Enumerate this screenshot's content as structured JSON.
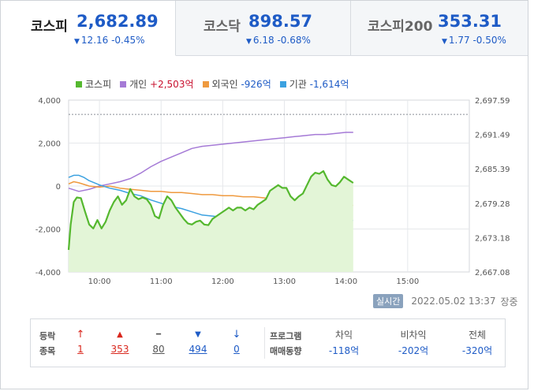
{
  "tabs": [
    {
      "name": "코스피",
      "price": "2,682.89",
      "change": "12.16 -0.45%",
      "active": true
    },
    {
      "name": "코스닥",
      "price": "898.57",
      "change": "6.18 -0.68%",
      "active": false
    },
    {
      "name": "코스피200",
      "price": "353.31",
      "change": "1.77 -0.50%",
      "active": false
    }
  ],
  "legend": [
    {
      "label": "코스피",
      "value": "",
      "color": "#55b82f"
    },
    {
      "label": "개인",
      "value": "+2,503억",
      "color": "#a57ad6"
    },
    {
      "label": "외국인",
      "value": "-926억",
      "color": "#ef9a3f"
    },
    {
      "label": "기관",
      "value": "-1,614억",
      "color": "#3ba1e0"
    }
  ],
  "chart_data": {
    "type": "line",
    "x_ticks": [
      "10:00",
      "11:00",
      "12:00",
      "13:00",
      "14:00",
      "15:00"
    ],
    "y_left_ticks": [
      "4,000",
      "2,000",
      "0",
      "-2,000",
      "-4,000"
    ],
    "y_left_range": [
      -4000,
      4000
    ],
    "y_right_ticks": [
      "2,697.59",
      "2,691.49",
      "2,685.39",
      "2,679.28",
      "2,673.18",
      "2,667.08"
    ],
    "y_right_range": [
      2667.08,
      2697.59
    ],
    "reference_line_right": 2695.05,
    "x_range_minutes": [
      0,
      390
    ],
    "series": [
      {
        "name": "개인",
        "axis": "left",
        "color": "#a57ad6",
        "x": [
          0,
          10,
          20,
          30,
          40,
          50,
          60,
          70,
          80,
          90,
          100,
          110,
          120,
          130,
          140,
          150,
          160,
          170,
          180,
          190,
          200,
          210,
          220,
          230,
          240,
          250,
          260,
          270,
          277
        ],
        "y": [
          -100,
          -250,
          -150,
          0,
          100,
          200,
          350,
          600,
          900,
          1150,
          1350,
          1550,
          1750,
          1850,
          1900,
          1950,
          2000,
          2050,
          2100,
          2150,
          2200,
          2250,
          2300,
          2350,
          2400,
          2400,
          2450,
          2500,
          2500
        ]
      },
      {
        "name": "외국인",
        "axis": "left",
        "color": "#ef9a3f",
        "x": [
          0,
          5,
          10,
          20,
          30,
          40,
          50,
          60,
          70,
          80,
          90,
          100,
          110,
          120,
          130,
          140,
          150,
          160,
          170,
          180,
          190,
          200,
          210,
          220,
          230,
          240,
          250,
          260,
          270,
          277
        ],
        "y": [
          100,
          200,
          150,
          0,
          -50,
          0,
          -100,
          -150,
          -200,
          -250,
          -250,
          -300,
          -300,
          -350,
          -400,
          -400,
          -450,
          -450,
          -500,
          -500,
          -550,
          -600,
          -650,
          -700,
          -750,
          -800,
          -800,
          -850,
          -900,
          -900
        ]
      },
      {
        "name": "기관",
        "axis": "left",
        "color": "#3ba1e0",
        "x": [
          0,
          5,
          10,
          15,
          20,
          30,
          40,
          50,
          60,
          70,
          80,
          90,
          100,
          110,
          120,
          130,
          140,
          150,
          160,
          170,
          180,
          190,
          200,
          210,
          220,
          230,
          240,
          250,
          260,
          270,
          277
        ],
        "y": [
          400,
          500,
          500,
          400,
          250,
          50,
          -100,
          -200,
          -350,
          -450,
          -650,
          -800,
          -950,
          -1050,
          -1200,
          -1350,
          -1400,
          -1450,
          -1500,
          -1550,
          -1600,
          -1600,
          -1650,
          -1650,
          -1600,
          -1600,
          -1600,
          -1600,
          -1650,
          -1600,
          -1600
        ]
      },
      {
        "name": "코스피",
        "axis": "right",
        "color": "#55b82f",
        "x": [
          0,
          2,
          5,
          8,
          12,
          16,
          20,
          24,
          28,
          32,
          36,
          40,
          44,
          48,
          52,
          56,
          60,
          64,
          68,
          72,
          76,
          80,
          84,
          88,
          92,
          96,
          100,
          104,
          108,
          112,
          116,
          120,
          124,
          128,
          132,
          136,
          140,
          144,
          148,
          152,
          156,
          160,
          164,
          168,
          172,
          176,
          180,
          184,
          188,
          192,
          196,
          200,
          204,
          208,
          212,
          216,
          220,
          224,
          228,
          232,
          236,
          240,
          244,
          248,
          252,
          256,
          260,
          264,
          268,
          272,
          277
        ],
        "y": [
          2671,
          2675.5,
          2679.5,
          2680.3,
          2680.2,
          2677.8,
          2675.5,
          2674.8,
          2676.3,
          2674.8,
          2676.0,
          2678.0,
          2679.5,
          2680.5,
          2679.0,
          2679.8,
          2681.8,
          2680.5,
          2680.0,
          2680.3,
          2680.0,
          2679.0,
          2677.0,
          2676.6,
          2679.0,
          2680.5,
          2679.8,
          2678.5,
          2677.5,
          2676.5,
          2675.7,
          2675.5,
          2676.0,
          2676.2,
          2675.5,
          2675.4,
          2676.5,
          2677.0,
          2677.5,
          2678.0,
          2678.5,
          2678.0,
          2678.5,
          2678.5,
          2678.0,
          2678.5,
          2678.2,
          2679.0,
          2679.5,
          2680.0,
          2681.5,
          2682.0,
          2682.5,
          2682.0,
          2682.0,
          2680.5,
          2679.8,
          2680.5,
          2681.0,
          2682.5,
          2684.0,
          2684.7,
          2684.5,
          2685.0,
          2683.5,
          2682.5,
          2682.3,
          2683.0,
          2684.0,
          2683.5,
          2682.89
        ]
      }
    ]
  },
  "realtime": {
    "badge": "실시간",
    "datetime": "2022.05.02 13:37",
    "status": "장중"
  },
  "breadth": {
    "label_line1": "등락",
    "label_line2": "종목",
    "items": [
      {
        "name": "upper-limit",
        "icon": "↑",
        "value": "1",
        "tone": "up"
      },
      {
        "name": "rise",
        "icon": "▲",
        "value": "353",
        "tone": "up"
      },
      {
        "name": "unchanged",
        "icon": "━",
        "value": "80",
        "tone": "flat"
      },
      {
        "name": "fall",
        "icon": "▼",
        "value": "494",
        "tone": "down"
      },
      {
        "name": "lower-limit",
        "icon": "↓",
        "value": "0",
        "tone": "down"
      }
    ]
  },
  "program": {
    "label_line1": "프로그램",
    "label_line2": "매매동향",
    "cols": [
      {
        "header": "차익",
        "value": "-118억"
      },
      {
        "header": "비차익",
        "value": "-202억"
      },
      {
        "header": "전체",
        "value": "-320억"
      }
    ]
  }
}
